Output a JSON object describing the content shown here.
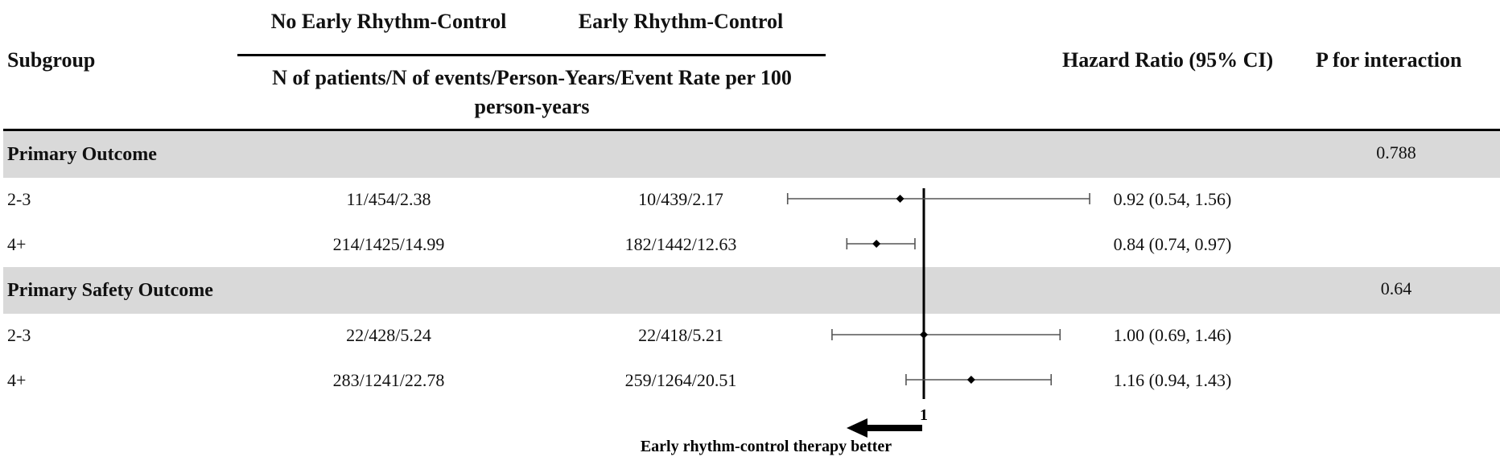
{
  "header": {
    "subgroup": "Subgroup",
    "group_no_early": "No Early Rhythm-Control",
    "group_early": "Early Rhythm-Control",
    "columns_desc_line1": "N of patients/N of events/Person-Years/Event Rate per 100",
    "columns_desc_line2": "person-years",
    "hr": "Hazard Ratio (95% CI)",
    "p": "P for interaction"
  },
  "sections": [
    {
      "title": "Primary Outcome",
      "p": "0.788",
      "rows": [
        {
          "label": "2-3",
          "no_early": "11/454/2.38",
          "early": "10/439/2.17",
          "hr_text": "0.92 (0.54, 1.56)"
        },
        {
          "label": "4+",
          "no_early": "214/1425/14.99",
          "early": "182/1442/12.63",
          "hr_text": "0.84 (0.74, 0.97)"
        }
      ]
    },
    {
      "title": "Primary Safety Outcome",
      "p": "0.64",
      "rows": [
        {
          "label": "2-3",
          "no_early": "22/428/5.24",
          "early": "22/418/5.21",
          "hr_text": "1.00 (0.69, 1.46)"
        },
        {
          "label": "4+",
          "no_early": "283/1241/22.78",
          "early": "259/1264/20.51",
          "hr_text": "1.16 (0.94, 1.43)"
        }
      ]
    }
  ],
  "chart_data": {
    "type": "forest",
    "reference_value": 1,
    "reference_label": "1",
    "x_range": [
      0.5,
      1.6
    ],
    "arrow_label": "Early rhythm-control therapy better",
    "arrow_direction": "left",
    "series": [
      {
        "label": "Primary Outcome 2-3",
        "hr": 0.92,
        "lower": 0.54,
        "upper": 1.56
      },
      {
        "label": "Primary Outcome 4+",
        "hr": 0.84,
        "lower": 0.74,
        "upper": 0.97
      },
      {
        "label": "Primary Safety Outcome 2-3",
        "hr": 1.0,
        "lower": 0.69,
        "upper": 1.46
      },
      {
        "label": "Primary Safety Outcome 4+",
        "hr": 1.16,
        "lower": 0.94,
        "upper": 1.43
      }
    ],
    "colors": {
      "band": "#d9d9d9",
      "line": "#000000",
      "whisker": "#555555"
    }
  }
}
